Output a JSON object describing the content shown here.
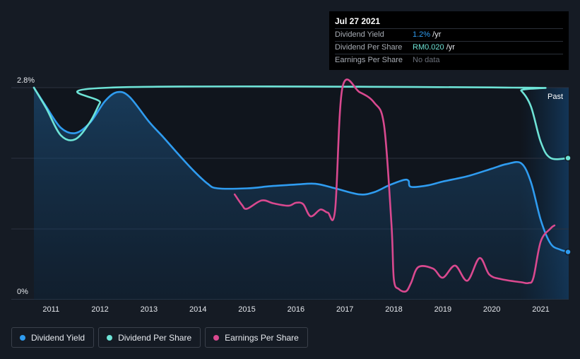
{
  "tooltip": {
    "date": "Jul 27 2021",
    "rows": [
      {
        "label": "Dividend Yield",
        "value": "1.2%",
        "unit": " /yr"
      },
      {
        "label": "Dividend Per Share",
        "value": "RM0.020",
        "unit": " /yr"
      },
      {
        "label": "Earnings Per Share",
        "value": "No data",
        "unit": ""
      }
    ]
  },
  "past_label": "Past",
  "legend": [
    {
      "label": "Dividend Yield",
      "color": "#2f9cf0"
    },
    {
      "label": "Dividend Per Share",
      "color": "#6ee3d6"
    },
    {
      "label": "Earnings Per Share",
      "color": "#d9498f"
    }
  ],
  "chart_data": {
    "type": "line",
    "ylabels": [
      "2.8%",
      "0%"
    ],
    "ylim": [
      0,
      2.8
    ],
    "xlim": [
      2010.65,
      2021.57
    ],
    "xticks": [
      "2011",
      "2012",
      "2013",
      "2014",
      "2015",
      "2016",
      "2017",
      "2018",
      "2019",
      "2020",
      "2021"
    ],
    "grid": true,
    "series": [
      {
        "name": "Dividend Yield",
        "color": "#2f9cf0",
        "area": true,
        "points": [
          [
            2010.65,
            2.8
          ],
          [
            2010.9,
            2.55
          ],
          [
            2011.2,
            2.27
          ],
          [
            2011.5,
            2.2
          ],
          [
            2011.8,
            2.34
          ],
          [
            2012.1,
            2.62
          ],
          [
            2012.35,
            2.74
          ],
          [
            2012.6,
            2.68
          ],
          [
            2013.0,
            2.35
          ],
          [
            2013.3,
            2.14
          ],
          [
            2013.6,
            1.92
          ],
          [
            2013.9,
            1.71
          ],
          [
            2014.2,
            1.53
          ],
          [
            2014.4,
            1.47
          ],
          [
            2015.0,
            1.47
          ],
          [
            2015.5,
            1.5
          ],
          [
            2016.0,
            1.52
          ],
          [
            2016.4,
            1.53
          ],
          [
            2016.8,
            1.47
          ],
          [
            2017.3,
            1.39
          ],
          [
            2017.6,
            1.42
          ],
          [
            2017.9,
            1.51
          ],
          [
            2018.2,
            1.58
          ],
          [
            2018.3,
            1.57
          ],
          [
            2018.35,
            1.49
          ],
          [
            2018.7,
            1.51
          ],
          [
            2019.0,
            1.56
          ],
          [
            2019.5,
            1.63
          ],
          [
            2020.0,
            1.73
          ],
          [
            2020.3,
            1.79
          ],
          [
            2020.6,
            1.8
          ],
          [
            2020.8,
            1.55
          ],
          [
            2021.0,
            1.05
          ],
          [
            2021.2,
            0.74
          ],
          [
            2021.4,
            0.66
          ],
          [
            2021.57,
            0.63
          ]
        ]
      },
      {
        "name": "Dividend Per Share",
        "color": "#6ee3d6",
        "points": [
          [
            2010.65,
            2.8
          ],
          [
            2010.9,
            2.53
          ],
          [
            2011.2,
            2.17
          ],
          [
            2011.5,
            2.12
          ],
          [
            2011.8,
            2.35
          ],
          [
            2012.0,
            2.6
          ],
          [
            2012.2,
            2.8
          ],
          [
            2020.45,
            2.8
          ],
          [
            2020.6,
            2.76
          ],
          [
            2020.8,
            2.55
          ],
          [
            2021.0,
            2.08
          ],
          [
            2021.2,
            1.87
          ],
          [
            2021.57,
            1.87
          ]
        ]
      },
      {
        "name": "Earnings Per Share",
        "color": "#d9498f",
        "segments": [
          [
            [
              2014.75,
              1.39
            ],
            [
              2014.9,
              1.25
            ],
            [
              2015.0,
              1.2
            ],
            [
              2015.3,
              1.31
            ],
            [
              2015.55,
              1.27
            ],
            [
              2015.85,
              1.24
            ],
            [
              2016.0,
              1.28
            ],
            [
              2016.15,
              1.26
            ],
            [
              2016.3,
              1.1
            ],
            [
              2016.5,
              1.19
            ],
            [
              2016.65,
              1.15
            ],
            [
              2016.8,
              1.18
            ],
            [
              2016.95,
              2.8
            ],
            [
              2017.3,
              2.74
            ],
            [
              2017.6,
              2.6
            ],
            [
              2017.8,
              2.3
            ],
            [
              2017.95,
              1.0
            ],
            [
              2018.0,
              0.27
            ],
            [
              2018.1,
              0.14
            ],
            [
              2018.25,
              0.11
            ],
            [
              2018.35,
              0.22
            ],
            [
              2018.5,
              0.43
            ],
            [
              2018.8,
              0.41
            ],
            [
              2019.0,
              0.29
            ],
            [
              2019.25,
              0.45
            ],
            [
              2019.5,
              0.25
            ],
            [
              2019.75,
              0.55
            ],
            [
              2019.95,
              0.33
            ],
            [
              2020.2,
              0.27
            ],
            [
              2020.6,
              0.23
            ],
            [
              2020.75,
              0.22
            ],
            [
              2020.85,
              0.29
            ],
            [
              2021.0,
              0.77
            ],
            [
              2021.2,
              0.94
            ],
            [
              2021.28,
              0.98
            ]
          ]
        ]
      }
    ]
  }
}
